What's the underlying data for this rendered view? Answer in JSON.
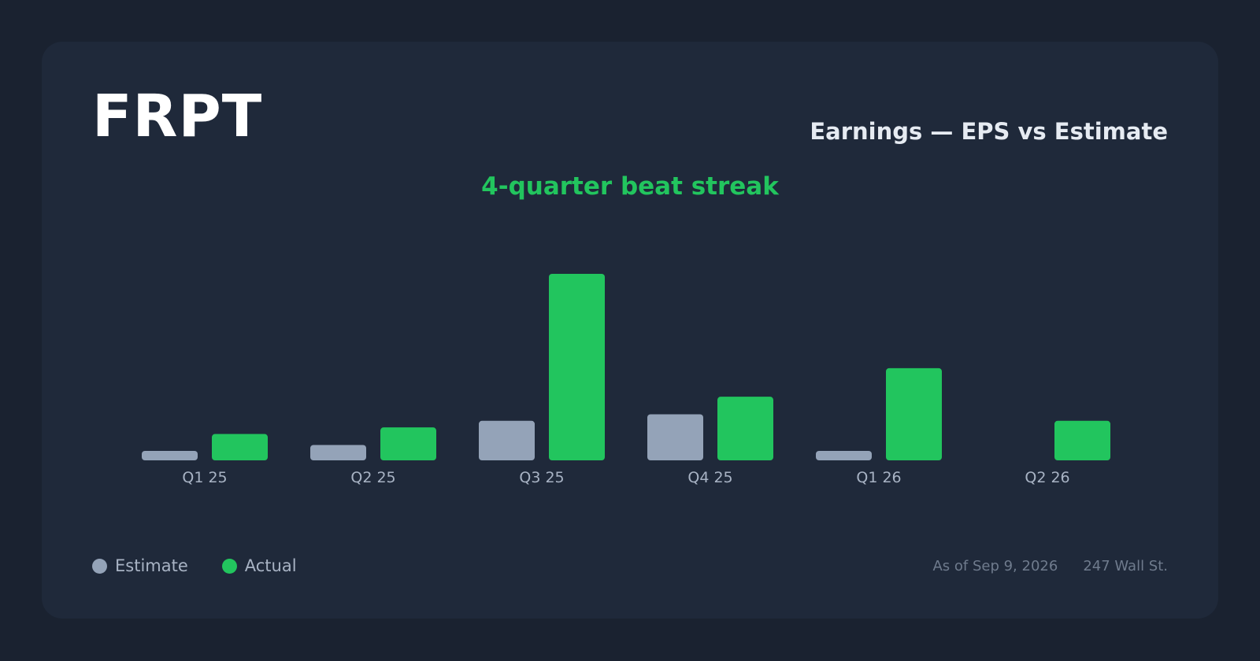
{
  "header": {
    "ticker": "FRPT",
    "title": "Earnings — EPS vs Estimate",
    "subtitle": "4-quarter beat streak"
  },
  "legend": {
    "estimate_label": "Estimate",
    "actual_label": "Actual"
  },
  "footer": {
    "as_of": "As of Sep 9, 2026",
    "source": "247 Wall St."
  },
  "colors": {
    "estimate": "#94a3b8",
    "actual": "#22c55e",
    "tick_label": "#a8b3c4"
  },
  "chart_data": {
    "type": "bar",
    "title": "Earnings — EPS vs Estimate",
    "categories": [
      "Q1 25",
      "Q2 25",
      "Q3 25",
      "Q4 25",
      "Q1 26",
      "Q2 26"
    ],
    "series": [
      {
        "name": "Estimate",
        "values": [
          0.04,
          0.07,
          0.18,
          0.21,
          0.04,
          null
        ]
      },
      {
        "name": "Actual",
        "values": [
          0.12,
          0.15,
          0.85,
          0.29,
          0.42,
          0.18
        ]
      }
    ],
    "ylim": [
      0,
      0.85
    ],
    "grid": false,
    "legend_position": "bottom-left"
  }
}
